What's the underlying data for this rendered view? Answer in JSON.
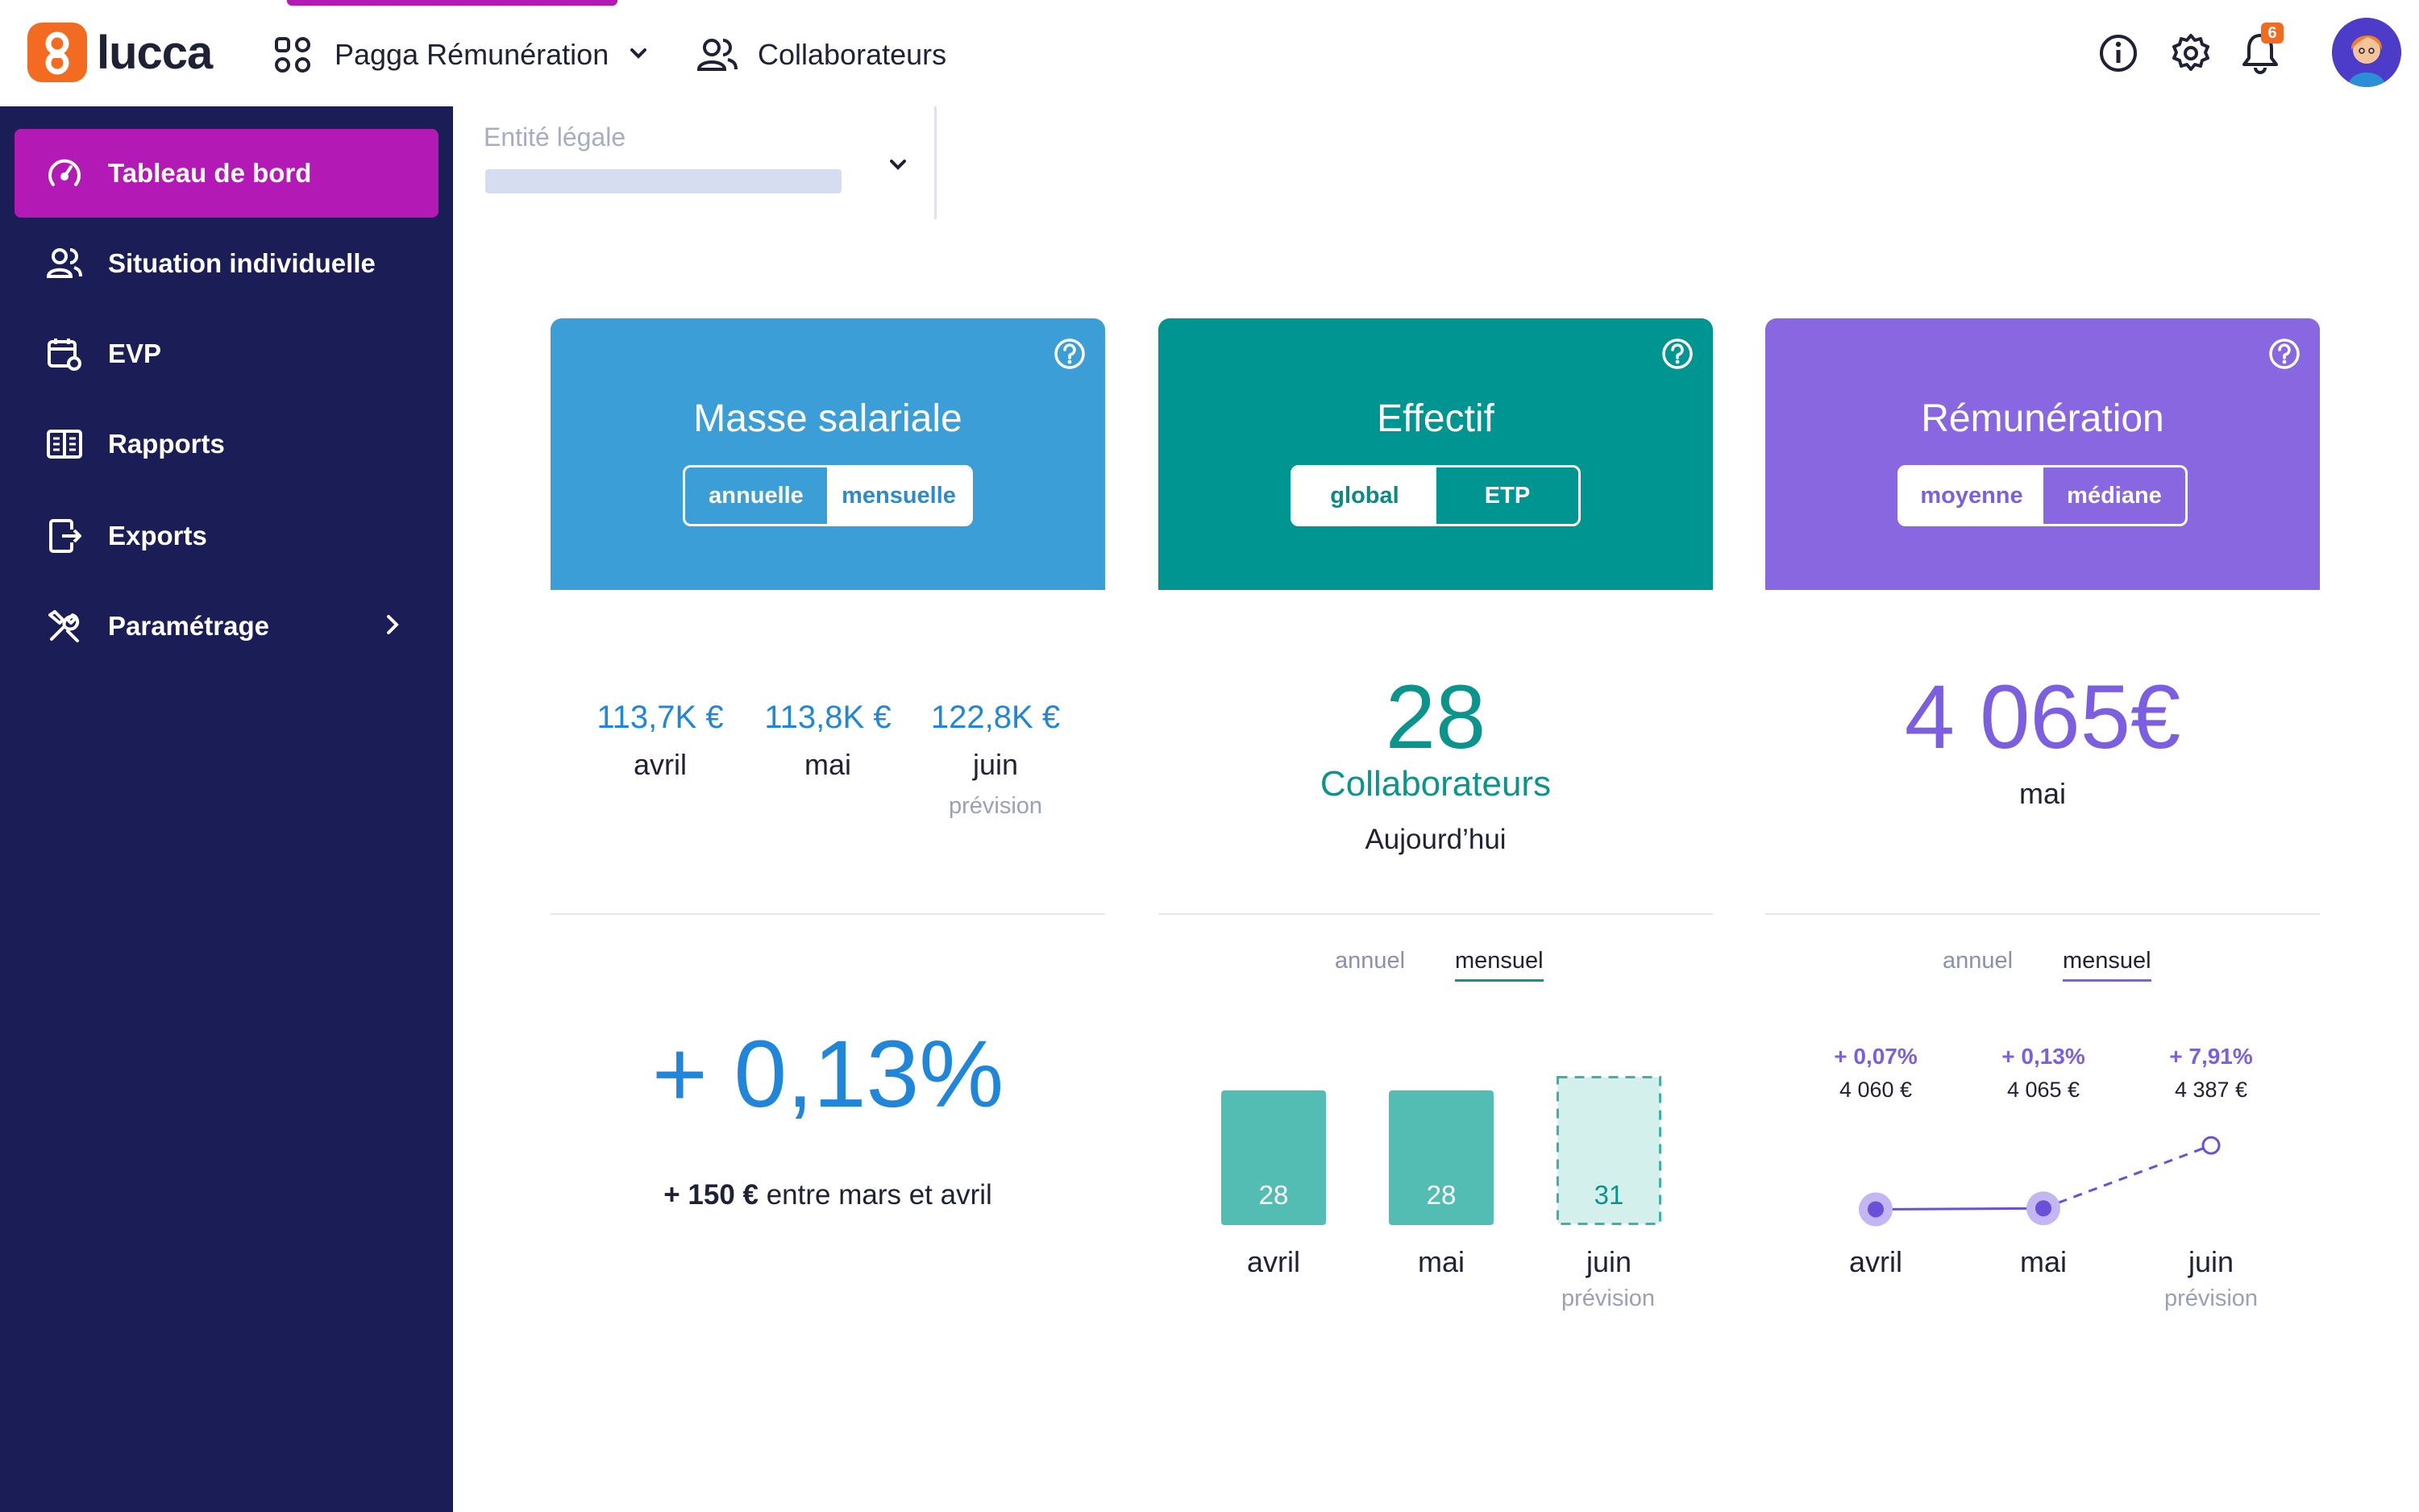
{
  "header": {
    "logo_text": "lucca",
    "app_name": "Pagga Rémunération",
    "nav_link": "Collaborateurs",
    "notifications_count": "6",
    "icons": [
      "info-icon",
      "settings-icon",
      "bell-icon"
    ]
  },
  "sidebar": {
    "items": [
      {
        "label": "Tableau de bord",
        "icon": "dashboard-icon",
        "active": true
      },
      {
        "label": "Situation individuelle",
        "icon": "users-icon"
      },
      {
        "label": "EVP",
        "icon": "calendar-settings-icon"
      },
      {
        "label": "Rapports",
        "icon": "book-icon"
      },
      {
        "label": "Exports",
        "icon": "export-icon"
      },
      {
        "label": "Paramétrage",
        "icon": "tools-icon"
      }
    ]
  },
  "filter": {
    "label": "Entité légale"
  },
  "cards": {
    "masse": {
      "title": "Masse salariale",
      "toggle": [
        "annuelle",
        "mensuelle"
      ],
      "toggle_selected": "mensuelle",
      "values": [
        {
          "amount": "113,7K €",
          "month": "avril"
        },
        {
          "amount": "113,8K €",
          "month": "mai"
        },
        {
          "amount": "122,8K €",
          "month": "juin",
          "note": "prévision"
        }
      ],
      "variation": "+ 0,13%",
      "variation_detail_strong": "+ 150 €",
      "variation_detail_rest": " entre mars et avril"
    },
    "effectif": {
      "title": "Effectif",
      "toggle": [
        "global",
        "ETP"
      ],
      "toggle_selected": "global",
      "count": "28",
      "count_label": "Collaborateurs",
      "date_label": "Aujourd’hui",
      "tabs": [
        "annuel",
        "mensuel"
      ],
      "tab_selected": "mensuel",
      "forecast_label": "prévision"
    },
    "remuneration": {
      "title": "Rémunération",
      "toggle": [
        "moyenne",
        "médiane"
      ],
      "toggle_selected": "moyenne",
      "amount": "4 065€",
      "month": "mai",
      "tabs": [
        "annuel",
        "mensuel"
      ],
      "tab_selected": "mensuel",
      "forecast_label": "prévision"
    }
  },
  "chart_data": [
    {
      "type": "bar",
      "categories": [
        "avril",
        "mai",
        "juin"
      ],
      "values": [
        28,
        28,
        31
      ],
      "forecast": [
        false,
        false,
        true
      ],
      "ylim": [
        0,
        31
      ],
      "colors": {
        "actual": "#54bdb3",
        "forecast": "#d4f0ec",
        "forecast_border": "#3fb2a6"
      }
    },
    {
      "type": "line",
      "categories": [
        "avril",
        "mai",
        "juin"
      ],
      "values": [
        4060,
        4065,
        4387
      ],
      "value_labels": [
        "4 060 €",
        "4 065 €",
        "4 387 €"
      ],
      "change_labels": [
        "+ 0,07%",
        "+ 0,13%",
        "+ 7,91%"
      ],
      "forecast": [
        false,
        false,
        true
      ],
      "ylim": [
        4000,
        4400
      ],
      "colors": {
        "line": "#6a4fd8"
      }
    }
  ],
  "colors": {
    "sidebar": "#1b1d57",
    "active": "#b31ab5",
    "masse": "#3b9ed6",
    "effectif": "#009590",
    "remuneration": "#8867e0"
  }
}
